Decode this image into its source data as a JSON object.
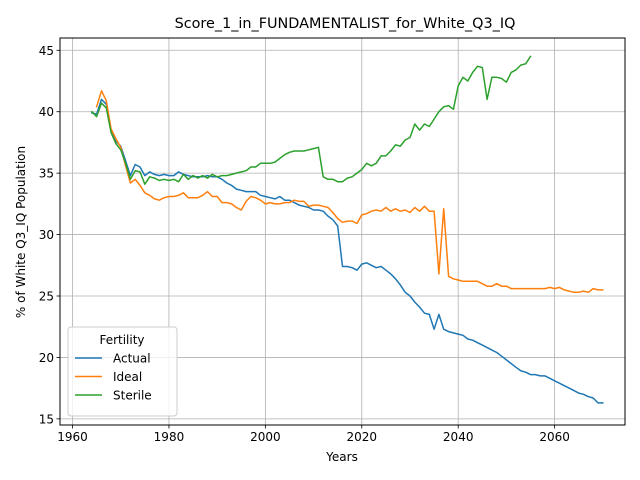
{
  "chart_data": {
    "type": "line",
    "title": "Score_1_in_FUNDAMENTALIST_for_White_Q3_IQ",
    "xlabel": "Years",
    "ylabel": "% of White Q3_IQ Population",
    "xlim": [
      1957.4,
      2074.6
    ],
    "ylim": [
      14.5,
      46.0
    ],
    "xticks": [
      1960,
      1980,
      2000,
      2020,
      2040,
      2060
    ],
    "yticks": [
      15,
      20,
      25,
      30,
      35,
      40,
      45
    ],
    "grid": true,
    "legend": {
      "title": "Fertility",
      "position": "lower-left"
    },
    "series": [
      {
        "name": "Actual",
        "color": "#1f77b4",
        "x": [
          1964,
          1965,
          1966,
          1967,
          1968,
          1969,
          1970,
          1971,
          1972,
          1973,
          1974,
          1975,
          1976,
          1977,
          1978,
          1979,
          1980,
          1981,
          1982,
          1983,
          1984,
          1985,
          1986,
          1987,
          1988,
          1989,
          1990,
          1991,
          1992,
          1993,
          1994,
          1995,
          1996,
          1997,
          1998,
          1999,
          2000,
          2001,
          2002,
          2003,
          2004,
          2005,
          2006,
          2007,
          2008,
          2009,
          2010,
          2011,
          2012,
          2013,
          2014,
          2015,
          2016,
          2017,
          2018,
          2019,
          2020,
          2021,
          2022,
          2023,
          2024,
          2025,
          2026,
          2027,
          2028,
          2029,
          2030,
          2031,
          2032,
          2033,
          2034,
          2035,
          2036,
          2037,
          2038,
          2039,
          2040,
          2041,
          2042,
          2043,
          2044,
          2045,
          2046,
          2047,
          2048,
          2049,
          2050,
          2051,
          2052,
          2053,
          2054,
          2055,
          2056,
          2057,
          2058,
          2059,
          2060,
          2061,
          2062,
          2063,
          2064,
          2065,
          2066,
          2067,
          2068,
          2069,
          2070
        ],
        "y": [
          39.9,
          39.8,
          41.0,
          40.6,
          38.4,
          37.6,
          37.2,
          36.0,
          34.8,
          35.7,
          35.5,
          34.8,
          35.1,
          34.9,
          34.8,
          34.9,
          34.8,
          34.8,
          35.1,
          34.9,
          34.8,
          34.7,
          34.7,
          34.7,
          34.8,
          34.7,
          34.7,
          34.5,
          34.2,
          34.0,
          33.7,
          33.6,
          33.5,
          33.5,
          33.5,
          33.2,
          33.1,
          33.0,
          32.9,
          33.1,
          32.8,
          32.8,
          32.6,
          32.4,
          32.3,
          32.2,
          32.0,
          32.0,
          31.9,
          31.5,
          31.2,
          30.7,
          27.4,
          27.4,
          27.3,
          27.1,
          27.6,
          27.7,
          27.5,
          27.3,
          27.4,
          27.1,
          26.8,
          26.4,
          25.9,
          25.3,
          25.0,
          24.5,
          24.1,
          23.6,
          23.5,
          22.3,
          23.5,
          22.3,
          22.1,
          22.0,
          21.9,
          21.8,
          21.5,
          21.4,
          21.2,
          21.0,
          20.8,
          20.6,
          20.4,
          20.1,
          19.8,
          19.5,
          19.2,
          18.9,
          18.8,
          18.6,
          18.6,
          18.5,
          18.5,
          18.3,
          18.1,
          17.9,
          17.7,
          17.5,
          17.3,
          17.1,
          17.0,
          16.8,
          16.7,
          16.3,
          16.3
        ]
      },
      {
        "name": "Ideal",
        "color": "#ff7f0e",
        "x": [
          1965,
          1966,
          1967,
          1968,
          1969,
          1970,
          1971,
          1972,
          1973,
          1974,
          1975,
          1976,
          1977,
          1978,
          1979,
          1980,
          1981,
          1982,
          1983,
          1984,
          1985,
          1986,
          1987,
          1988,
          1989,
          1990,
          1991,
          1992,
          1993,
          1994,
          1995,
          1996,
          1997,
          1998,
          1999,
          2000,
          2001,
          2002,
          2003,
          2004,
          2005,
          2006,
          2007,
          2008,
          2009,
          2010,
          2011,
          2012,
          2013,
          2014,
          2015,
          2016,
          2017,
          2018,
          2019,
          2020,
          2021,
          2022,
          2023,
          2024,
          2025,
          2026,
          2027,
          2028,
          2029,
          2030,
          2031,
          2032,
          2033,
          2034,
          2035,
          2036,
          2037,
          2038,
          2039,
          2040,
          2041,
          2042,
          2043,
          2044,
          2045,
          2046,
          2047,
          2048,
          2049,
          2050,
          2051,
          2052,
          2053,
          2054,
          2055,
          2056,
          2057,
          2058,
          2059,
          2060,
          2061,
          2062,
          2063,
          2064,
          2065,
          2066,
          2067,
          2068,
          2069,
          2070
        ],
        "y": [
          40.4,
          41.7,
          40.9,
          38.6,
          37.8,
          37.1,
          35.6,
          34.2,
          34.5,
          34.0,
          33.4,
          33.2,
          32.9,
          32.8,
          33.0,
          33.1,
          33.1,
          33.2,
          33.4,
          33.0,
          33.0,
          33.0,
          33.2,
          33.5,
          33.1,
          33.1,
          32.6,
          32.6,
          32.5,
          32.2,
          32.0,
          32.7,
          33.1,
          33.0,
          32.8,
          32.5,
          32.6,
          32.5,
          32.5,
          32.6,
          32.6,
          32.8,
          32.7,
          32.7,
          32.3,
          32.4,
          32.4,
          32.3,
          32.2,
          31.8,
          31.3,
          31.0,
          31.1,
          31.1,
          30.9,
          31.6,
          31.7,
          31.9,
          32.0,
          31.9,
          32.2,
          31.9,
          32.1,
          31.9,
          32.0,
          31.8,
          32.2,
          31.9,
          32.3,
          31.9,
          31.9,
          26.8,
          32.1,
          26.6,
          26.4,
          26.3,
          26.2,
          26.2,
          26.2,
          26.2,
          26.0,
          25.8,
          25.8,
          26.0,
          25.8,
          25.8,
          25.6,
          25.6,
          25.6,
          25.6,
          25.6,
          25.6,
          25.6,
          25.6,
          25.7,
          25.6,
          25.7,
          25.5,
          25.4,
          25.3,
          25.3,
          25.4,
          25.3,
          25.6,
          25.5,
          25.5
        ]
      },
      {
        "name": "Sterile",
        "color": "#2ca02c",
        "x": [
          1964,
          1965,
          1966,
          1967,
          1968,
          1969,
          1970,
          1971,
          1972,
          1973,
          1974,
          1975,
          1976,
          1977,
          1978,
          1979,
          1980,
          1981,
          1982,
          1983,
          1984,
          1985,
          1986,
          1987,
          1988,
          1989,
          1990,
          1991,
          1992,
          1993,
          1994,
          1995,
          1996,
          1997,
          1998,
          1999,
          2000,
          2001,
          2002,
          2003,
          2004,
          2005,
          2006,
          2007,
          2008,
          2009,
          2010,
          2011,
          2012,
          2013,
          2014,
          2015,
          2016,
          2017,
          2018,
          2019,
          2020,
          2021,
          2022,
          2023,
          2024,
          2025,
          2026,
          2027,
          2028,
          2029,
          2030,
          2031,
          2032,
          2033,
          2034,
          2035,
          2036,
          2037,
          2038,
          2039,
          2040,
          2041,
          2042,
          2043,
          2044,
          2045,
          2046,
          2047,
          2048,
          2049,
          2050,
          2051,
          2052,
          2053,
          2054,
          2055
        ],
        "y": [
          40.0,
          39.6,
          40.7,
          40.3,
          38.3,
          37.4,
          36.9,
          35.8,
          34.5,
          35.2,
          35.1,
          34.1,
          34.7,
          34.6,
          34.4,
          34.5,
          34.4,
          34.5,
          34.3,
          34.9,
          34.5,
          34.8,
          34.6,
          34.8,
          34.6,
          34.9,
          34.7,
          34.8,
          34.8,
          34.9,
          35.0,
          35.1,
          35.2,
          35.5,
          35.5,
          35.8,
          35.8,
          35.8,
          35.9,
          36.2,
          36.5,
          36.7,
          36.8,
          36.8,
          36.8,
          36.9,
          37.0,
          37.1,
          34.7,
          34.5,
          34.5,
          34.3,
          34.3,
          34.6,
          34.7,
          35.0,
          35.3,
          35.8,
          35.6,
          35.8,
          36.4,
          36.4,
          36.8,
          37.3,
          37.2,
          37.7,
          37.9,
          39.0,
          38.5,
          39.0,
          38.8,
          39.4,
          40.0,
          40.4,
          40.5,
          40.2,
          42.1,
          42.8,
          42.5,
          43.2,
          43.7,
          43.6,
          41.0,
          42.8,
          42.8,
          42.7,
          42.4,
          43.2,
          43.4,
          43.8,
          43.9,
          44.5
        ]
      }
    ]
  }
}
